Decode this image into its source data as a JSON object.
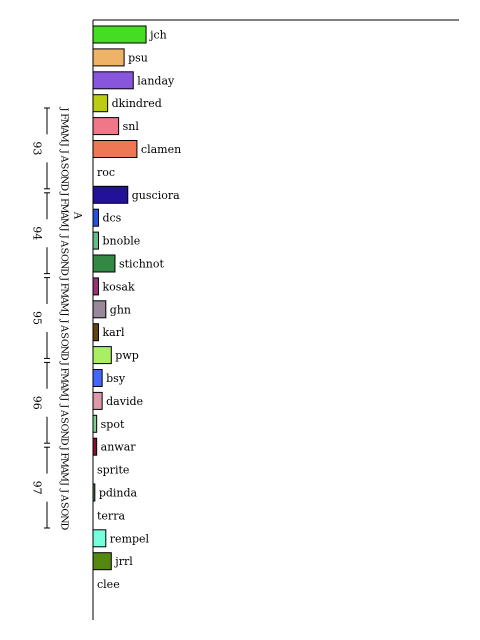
{
  "chart_data": {
    "type": "bar",
    "orientation": "horizontal",
    "title": "",
    "xlabel": "",
    "ylabel": "",
    "grid": false,
    "legend": "none",
    "xlim": [
      0,
      100
    ],
    "categories": [
      "jch",
      "psu",
      "landay",
      "dkindred",
      "snl",
      "clamen",
      "roc",
      "gusciora",
      "dcs",
      "bnoble",
      "stichnot",
      "kosak",
      "ghn",
      "karl",
      "pwp",
      "bsy",
      "davide",
      "spot",
      "anwar",
      "sprite",
      "pdinda",
      "terra",
      "rempel",
      "jrrl",
      "clee"
    ],
    "values": [
      14.5,
      8.5,
      11,
      4,
      7,
      12,
      0,
      9.5,
      1.5,
      1.5,
      6,
      1.5,
      3.5,
      1.5,
      5,
      2.5,
      2.5,
      1,
      1,
      0,
      0.5,
      0,
      3.5,
      5,
      0
    ],
    "colors": [
      "#44dd22",
      "#eeb366",
      "#8855dd",
      "#bbcc11",
      "#ee7788",
      "#ee7755",
      "#ffffff",
      "#221199",
      "#2255dd",
      "#66bb88",
      "#338844",
      "#993377",
      "#998899",
      "#664411",
      "#aaee66",
      "#4466ff",
      "#dd99aa",
      "#88cc99",
      "#881133",
      "#ffffff",
      "#558855",
      "#ffffff",
      "#77ffdd",
      "#558811",
      "#ffffff"
    ],
    "timeline": {
      "month_letters": "JFMAMJJASOND",
      "years": [
        "93",
        "94",
        "95",
        "96",
        "97"
      ],
      "marker": "A",
      "marker_year_index": 1,
      "marker_month_index": 3
    }
  }
}
